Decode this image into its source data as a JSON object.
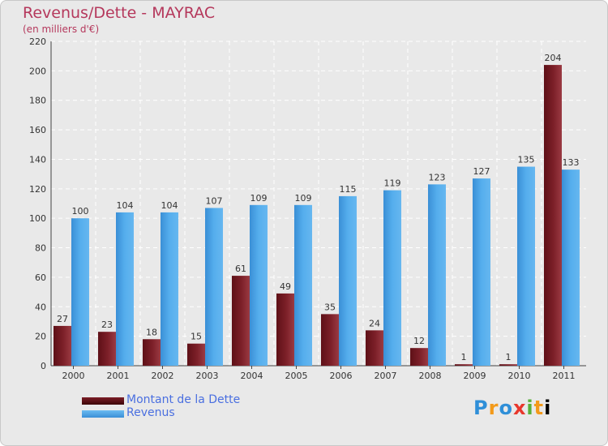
{
  "header": {
    "title": "Revenus/Dette - MAYRAC",
    "subtitle": "(en milliers d'€)"
  },
  "legend": {
    "dette_label": "Montant de la Dette",
    "revenus_label": "Revenus"
  },
  "logo": {
    "text": "Proxiti"
  },
  "colors": {
    "dette": "#7a1d26",
    "revenus": "#4aa3e6",
    "background": "#e9e9e9",
    "title": "#b5385c",
    "legend_text": "#4a6fe0"
  },
  "chart_data": {
    "type": "bar",
    "title": "Revenus/Dette - MAYRAC",
    "subtitle": "(en milliers d'€)",
    "categories": [
      "2000",
      "2001",
      "2002",
      "2003",
      "2004",
      "2005",
      "2006",
      "2007",
      "2008",
      "2009",
      "2010",
      "2011"
    ],
    "series": [
      {
        "name": "Montant de la Dette",
        "values": [
          27,
          23,
          18,
          15,
          61,
          49,
          35,
          24,
          12,
          1,
          1,
          204
        ]
      },
      {
        "name": "Revenus",
        "values": [
          100,
          104,
          104,
          107,
          109,
          109,
          115,
          119,
          123,
          127,
          135,
          133
        ]
      }
    ],
    "ylim": [
      0,
      220
    ],
    "yticks": [
      0,
      20,
      40,
      60,
      80,
      100,
      120,
      140,
      160,
      180,
      200,
      220
    ],
    "grid": true,
    "legend_position": "bottom-left"
  }
}
